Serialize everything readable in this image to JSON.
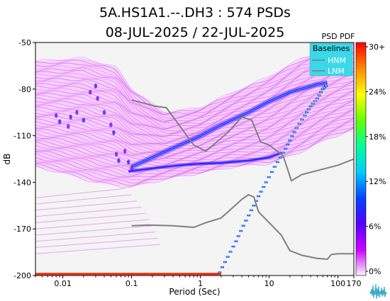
{
  "chart_data": {
    "type": "heatmap",
    "title": "5A.HS1A1.--.DH3 : 574 PSDs",
    "subtitle": "08-JUL-2025 / 22-JUL-2025",
    "xlabel": "Period (Sec)",
    "ylabel": "dB",
    "x_scale": "log",
    "xlim": [
      0.004,
      170
    ],
    "ylim": [
      -200,
      -50
    ],
    "x_ticks": [
      {
        "value": 0.01,
        "label": "0.01"
      },
      {
        "value": 0.1,
        "label": "0.1"
      },
      {
        "value": 1,
        "label": "1"
      },
      {
        "value": 10,
        "label": "10"
      },
      {
        "value": 100,
        "label": "100"
      },
      {
        "value": 170,
        "label": "170"
      }
    ],
    "y_ticks": [
      -50,
      -80,
      -110,
      -140,
      -170,
      -200
    ],
    "colorbar": {
      "title": "PSD PDF",
      "labels": [
        "30+",
        "24%",
        "18%",
        "12%",
        "6%",
        "0%"
      ],
      "colors": [
        "#ff0000",
        "#ff8800",
        "#ffff00",
        "#66ff00",
        "#00ff99",
        "#00ccff",
        "#0044ff",
        "#5500ff",
        "#cc00ff",
        "#f7f7f7"
      ]
    },
    "legend": {
      "title": "Baselines",
      "position": "top-right",
      "entries": [
        "HNM",
        "LNM"
      ]
    },
    "noise_models": {
      "HNM": {
        "color": "#808080",
        "points": [
          [
            0.1,
            -87
          ],
          [
            0.22,
            -91
          ],
          [
            0.32,
            -92
          ],
          [
            0.8,
            -116
          ],
          [
            1.2,
            -120
          ],
          [
            2.5,
            -108
          ],
          [
            4.0,
            -98
          ],
          [
            5.6,
            -100
          ],
          [
            7.5,
            -114
          ],
          [
            10,
            -116
          ],
          [
            14,
            -121
          ],
          [
            16,
            -123
          ],
          [
            21,
            -139
          ],
          [
            30,
            -135
          ],
          [
            100,
            -129
          ],
          [
            170,
            -125
          ]
        ]
      },
      "LNM": {
        "color": "#808080",
        "points": [
          [
            0.1,
            -168
          ],
          [
            0.17,
            -167.5
          ],
          [
            0.4,
            -168
          ],
          [
            0.8,
            -169
          ],
          [
            1.2,
            -166
          ],
          [
            2.0,
            -163
          ],
          [
            3.0,
            -156
          ],
          [
            4.0,
            -151
          ],
          [
            5.0,
            -148
          ],
          [
            6.0,
            -149.5
          ],
          [
            7.0,
            -159
          ],
          [
            10,
            -166
          ],
          [
            15,
            -174
          ],
          [
            20,
            -184
          ],
          [
            30,
            -187
          ],
          [
            50,
            -189
          ],
          [
            70,
            -189.5
          ],
          [
            80,
            -186.5
          ],
          [
            100,
            -186
          ],
          [
            170,
            -186
          ]
        ]
      }
    },
    "mode_ridge": {
      "points": [
        [
          0.1,
          -130
        ],
        [
          0.2,
          -124
        ],
        [
          0.5,
          -116
        ],
        [
          1,
          -110
        ],
        [
          2,
          -103
        ],
        [
          5,
          -95
        ],
        [
          10,
          -88
        ],
        [
          20,
          -82
        ],
        [
          50,
          -77
        ],
        [
          70,
          -76
        ]
      ]
    },
    "secondary_ridge": {
      "points": [
        [
          0.09,
          -133
        ],
        [
          0.2,
          -131
        ],
        [
          0.5,
          -129
        ],
        [
          1,
          -128
        ],
        [
          2,
          -127.5
        ],
        [
          5,
          -126
        ],
        [
          10,
          -124
        ],
        [
          15,
          -121
        ]
      ]
    },
    "steep_trail": {
      "points": [
        [
          1.9,
          -198
        ],
        [
          2.5,
          -188
        ],
        [
          3.3,
          -178
        ],
        [
          4.2,
          -168
        ],
        [
          5.5,
          -158
        ],
        [
          7,
          -149
        ],
        [
          9,
          -140
        ],
        [
          12,
          -130
        ],
        [
          16,
          -121
        ],
        [
          20,
          -113
        ],
        [
          25,
          -105
        ],
        [
          33,
          -97
        ],
        [
          40,
          -91
        ],
        [
          50,
          -86
        ],
        [
          60,
          -80
        ],
        [
          70,
          -77
        ]
      ]
    },
    "bottom_band": {
      "value": -199,
      "color": "#ff2200"
    }
  }
}
